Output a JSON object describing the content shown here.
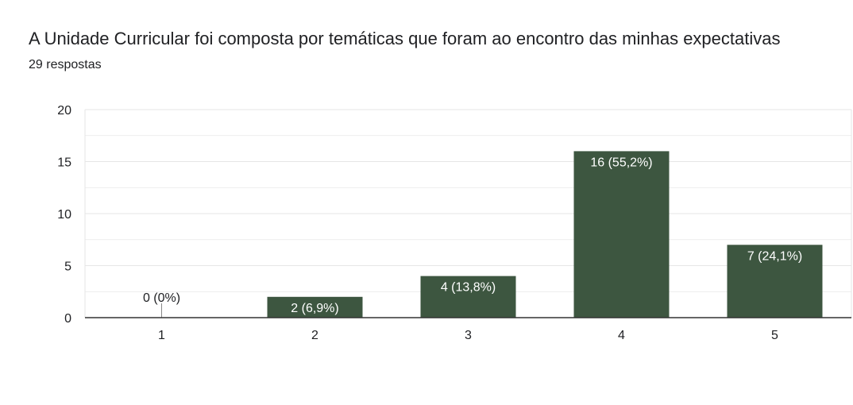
{
  "header": {
    "title": "A Unidade Curricular foi composta por temáticas que foram ao encontro das minhas expectativas",
    "subtitle": "29 respostas"
  },
  "colors": {
    "bar": "#3d5640",
    "grid": "#e6e6e6",
    "axis": "#333333",
    "text": "#202124"
  },
  "chart_data": {
    "type": "bar",
    "categories": [
      "1",
      "2",
      "3",
      "4",
      "5"
    ],
    "values": [
      0,
      2,
      4,
      16,
      7
    ],
    "data_labels": [
      "0 (0%)",
      "2 (6,9%)",
      "4 (13,8%)",
      "16 (55,2%)",
      "7 (24,1%)"
    ],
    "title": "A Unidade Curricular foi composta por temáticas que foram ao encontro das minhas expectativas",
    "subtitle": "29 respostas",
    "xlabel": "",
    "ylabel": "",
    "ylim": [
      0,
      20
    ],
    "yticks": [
      "0",
      "5",
      "10",
      "15",
      "20"
    ],
    "grid": true,
    "legend": "none"
  }
}
